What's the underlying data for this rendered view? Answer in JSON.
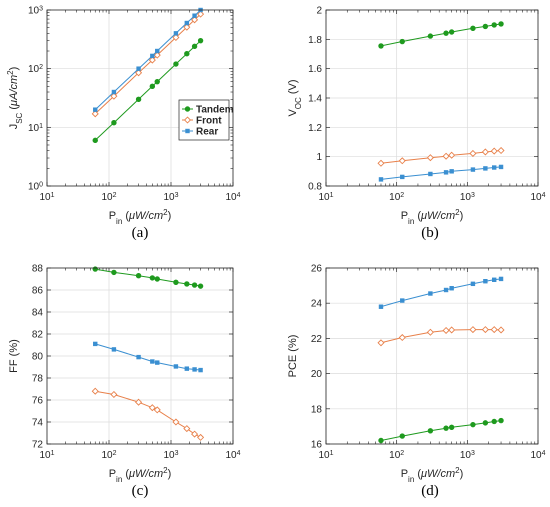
{
  "colors": {
    "tandem": "#1e9a1e",
    "front": "#e8804a",
    "rear": "#3a8fd1",
    "axis": "#262626",
    "grid": "#dcdcdc"
  },
  "chart_data": [
    {
      "id": "a",
      "type": "line",
      "panel_label": "(a)",
      "title": "",
      "xlabel": {
        "main": "P",
        "sub": "in",
        "unit": " (μW/cm",
        "sup": "2",
        "end": ")"
      },
      "ylabel": {
        "main": "J",
        "sub": "SC",
        "unit": " (μA/cm",
        "sup": "2",
        "end": ")"
      },
      "xscale": "log",
      "yscale": "log",
      "xlim": [
        10,
        10000
      ],
      "ylim": [
        1,
        1000
      ],
      "xticks": [
        10,
        100,
        1000,
        10000
      ],
      "xtick_labels": [
        {
          "b": "10",
          "e": "1"
        },
        {
          "b": "10",
          "e": "2"
        },
        {
          "b": "10",
          "e": "3"
        },
        {
          "b": "10",
          "e": "4"
        }
      ],
      "yticks": [
        1,
        10,
        100,
        1000
      ],
      "ytick_labels": [
        {
          "b": "10",
          "e": "0"
        },
        {
          "b": "10",
          "e": "1"
        },
        {
          "b": "10",
          "e": "2"
        },
        {
          "b": "10",
          "e": "3"
        }
      ],
      "grid": true,
      "legend": "center-right",
      "series": [
        {
          "name": "Tandem",
          "key": "tandem",
          "marker": "filled-circle",
          "x": [
            60,
            120,
            300,
            500,
            600,
            1200,
            1800,
            2400,
            3000
          ],
          "y": [
            6,
            12,
            30,
            50,
            60,
            120,
            180,
            240,
            300
          ]
        },
        {
          "name": "Front",
          "key": "front",
          "marker": "open-diamond",
          "x": [
            60,
            120,
            300,
            500,
            600,
            1200,
            1800,
            2400,
            3000
          ],
          "y": [
            17,
            34,
            85,
            140,
            170,
            340,
            510,
            680,
            850
          ]
        },
        {
          "name": "Rear",
          "key": "rear",
          "marker": "filled-square",
          "x": [
            60,
            120,
            300,
            500,
            600,
            1200,
            1800,
            2400,
            3000
          ],
          "y": [
            20,
            40,
            100,
            165,
            200,
            400,
            600,
            800,
            1000
          ]
        }
      ]
    },
    {
      "id": "b",
      "type": "line",
      "panel_label": "(b)",
      "title": "",
      "xlabel": {
        "main": "P",
        "sub": "in",
        "unit": " (μW/cm",
        "sup": "2",
        "end": ")"
      },
      "ylabel": {
        "main": "V",
        "sub": "OC",
        "unit": " (V)",
        "sup": "",
        "end": ""
      },
      "xscale": "log",
      "yscale": "linear",
      "xlim": [
        10,
        10000
      ],
      "ylim": [
        0.8,
        2
      ],
      "xticks": [
        10,
        100,
        1000,
        10000
      ],
      "xtick_labels": [
        {
          "b": "10",
          "e": "1"
        },
        {
          "b": "10",
          "e": "2"
        },
        {
          "b": "10",
          "e": "3"
        },
        {
          "b": "10",
          "e": "4"
        }
      ],
      "yticks": [
        0.8,
        1,
        1.2,
        1.4,
        1.6,
        1.8,
        2
      ],
      "ytick_labels": [
        {
          "b": "0.8",
          "e": ""
        },
        {
          "b": "1",
          "e": ""
        },
        {
          "b": "1.2",
          "e": ""
        },
        {
          "b": "1.4",
          "e": ""
        },
        {
          "b": "1.6",
          "e": ""
        },
        {
          "b": "1.8",
          "e": ""
        },
        {
          "b": "2",
          "e": ""
        }
      ],
      "grid": true,
      "legend": "none",
      "series": [
        {
          "key": "tandem",
          "marker": "filled-circle",
          "x": [
            60,
            120,
            300,
            500,
            600,
            1200,
            1800,
            2400,
            3000
          ],
          "y": [
            1.755,
            1.785,
            1.822,
            1.842,
            1.85,
            1.875,
            1.888,
            1.898,
            1.905
          ]
        },
        {
          "key": "front",
          "marker": "open-diamond",
          "x": [
            60,
            120,
            300,
            500,
            600,
            1200,
            1800,
            2400,
            3000
          ],
          "y": [
            0.955,
            0.972,
            0.993,
            1.003,
            1.01,
            1.022,
            1.032,
            1.038,
            1.042
          ]
        },
        {
          "key": "rear",
          "marker": "filled-square",
          "x": [
            60,
            120,
            300,
            500,
            600,
            1200,
            1800,
            2400,
            3000
          ],
          "y": [
            0.845,
            0.862,
            0.882,
            0.893,
            0.9,
            0.912,
            0.92,
            0.926,
            0.93
          ]
        }
      ]
    },
    {
      "id": "c",
      "type": "line",
      "panel_label": "(c)",
      "title": "",
      "xlabel": {
        "main": "P",
        "sub": "in",
        "unit": " (μW/cm",
        "sup": "2",
        "end": ")"
      },
      "ylabel": {
        "main": "FF (%)",
        "sub": "",
        "unit": "",
        "sup": "",
        "end": ""
      },
      "xscale": "log",
      "yscale": "linear",
      "xlim": [
        10,
        10000
      ],
      "ylim": [
        72,
        88
      ],
      "xticks": [
        10,
        100,
        1000,
        10000
      ],
      "xtick_labels": [
        {
          "b": "10",
          "e": "1"
        },
        {
          "b": "10",
          "e": "2"
        },
        {
          "b": "10",
          "e": "3"
        },
        {
          "b": "10",
          "e": "4"
        }
      ],
      "yticks": [
        72,
        74,
        76,
        78,
        80,
        82,
        84,
        86,
        88
      ],
      "ytick_labels": [
        {
          "b": "72",
          "e": ""
        },
        {
          "b": "74",
          "e": ""
        },
        {
          "b": "76",
          "e": ""
        },
        {
          "b": "78",
          "e": ""
        },
        {
          "b": "80",
          "e": ""
        },
        {
          "b": "82",
          "e": ""
        },
        {
          "b": "84",
          "e": ""
        },
        {
          "b": "86",
          "e": ""
        },
        {
          "b": "88",
          "e": ""
        }
      ],
      "grid": true,
      "legend": "none",
      "series": [
        {
          "key": "tandem",
          "marker": "filled-circle",
          "x": [
            60,
            120,
            300,
            500,
            600,
            1200,
            1800,
            2400,
            3000
          ],
          "y": [
            87.9,
            87.6,
            87.3,
            87.1,
            87.0,
            86.7,
            86.55,
            86.45,
            86.35
          ]
        },
        {
          "key": "front",
          "marker": "open-diamond",
          "x": [
            60,
            120,
            300,
            500,
            600,
            1200,
            1800,
            2400,
            3000
          ],
          "y": [
            76.8,
            76.5,
            75.8,
            75.3,
            75.1,
            74.0,
            73.4,
            72.9,
            72.6
          ]
        },
        {
          "key": "rear",
          "marker": "filled-square",
          "x": [
            60,
            120,
            300,
            500,
            600,
            1200,
            1800,
            2400,
            3000
          ],
          "y": [
            81.1,
            80.6,
            79.9,
            79.5,
            79.4,
            79.05,
            78.85,
            78.78,
            78.72
          ]
        }
      ]
    },
    {
      "id": "d",
      "type": "line",
      "panel_label": "(d)",
      "title": "",
      "xlabel": {
        "main": "P",
        "sub": "in",
        "unit": " (μW/cm",
        "sup": "2",
        "end": ")"
      },
      "ylabel": {
        "main": "PCE (%)",
        "sub": "",
        "unit": "",
        "sup": "",
        "end": ""
      },
      "xscale": "log",
      "yscale": "linear",
      "xlim": [
        10,
        10000
      ],
      "ylim": [
        16,
        26
      ],
      "xticks": [
        10,
        100,
        1000,
        10000
      ],
      "xtick_labels": [
        {
          "b": "10",
          "e": "1"
        },
        {
          "b": "10",
          "e": "2"
        },
        {
          "b": "10",
          "e": "3"
        },
        {
          "b": "10",
          "e": "4"
        }
      ],
      "yticks": [
        16,
        18,
        20,
        22,
        24,
        26
      ],
      "ytick_labels": [
        {
          "b": "16",
          "e": ""
        },
        {
          "b": "18",
          "e": ""
        },
        {
          "b": "20",
          "e": ""
        },
        {
          "b": "22",
          "e": ""
        },
        {
          "b": "24",
          "e": ""
        },
        {
          "b": "26",
          "e": ""
        }
      ],
      "grid": true,
      "legend": "none",
      "series": [
        {
          "key": "tandem",
          "marker": "filled-circle",
          "x": [
            60,
            120,
            300,
            500,
            600,
            1200,
            1800,
            2400,
            3000
          ],
          "y": [
            16.2,
            16.45,
            16.75,
            16.9,
            16.95,
            17.1,
            17.2,
            17.28,
            17.33
          ]
        },
        {
          "key": "front",
          "marker": "open-diamond",
          "x": [
            60,
            120,
            300,
            500,
            600,
            1200,
            1800,
            2400,
            3000
          ],
          "y": [
            21.75,
            22.05,
            22.35,
            22.45,
            22.48,
            22.5,
            22.5,
            22.5,
            22.48
          ]
        },
        {
          "key": "rear",
          "marker": "filled-square",
          "x": [
            60,
            120,
            300,
            500,
            600,
            1200,
            1800,
            2400,
            3000
          ],
          "y": [
            23.8,
            24.15,
            24.55,
            24.75,
            24.85,
            25.1,
            25.25,
            25.33,
            25.38
          ]
        }
      ]
    }
  ]
}
